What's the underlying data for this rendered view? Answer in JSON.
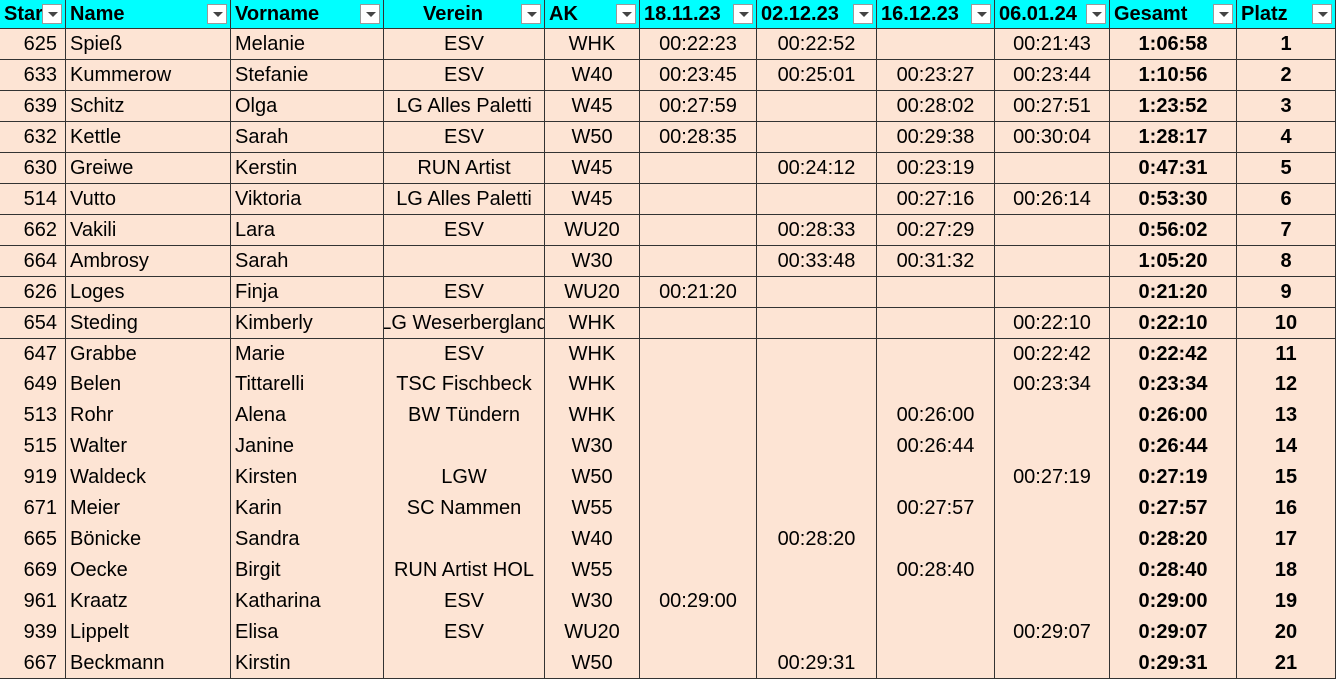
{
  "header": {
    "columns": [
      "Start",
      "Name",
      "Vorname",
      "Verein",
      "AK",
      "18.11.23",
      "02.12.23",
      "16.12.23",
      "06.01.24",
      "Gesamt",
      "Platz"
    ]
  },
  "table": {
    "rows": [
      [
        625,
        "Spieß",
        "Melanie",
        "ESV",
        "WHK",
        "00:22:23",
        "00:22:52",
        null,
        "00:21:43",
        "1:06:58",
        1
      ],
      [
        633,
        "Kummerow",
        "Stefanie",
        "ESV",
        "W40",
        "00:23:45",
        "00:25:01",
        "00:23:27",
        "00:23:44",
        "1:10:56",
        2
      ],
      [
        639,
        "Schitz",
        "Olga",
        "LG Alles Paletti",
        "W45",
        "00:27:59",
        null,
        "00:28:02",
        "00:27:51",
        "1:23:52",
        3
      ],
      [
        632,
        "Kettle",
        "Sarah",
        "ESV",
        "W50",
        "00:28:35",
        null,
        "00:29:38",
        "00:30:04",
        "1:28:17",
        4
      ],
      [
        630,
        "Greiwe",
        "Kerstin",
        "RUN Artist",
        "W45",
        null,
        "00:24:12",
        "00:23:19",
        null,
        "0:47:31",
        5
      ],
      [
        514,
        "Vutto",
        "Viktoria",
        "LG Alles Paletti",
        "W45",
        null,
        null,
        "00:27:16",
        "00:26:14",
        "0:53:30",
        6
      ],
      [
        662,
        "Vakili",
        "Lara",
        "ESV",
        "WU20",
        null,
        "00:28:33",
        "00:27:29",
        null,
        "0:56:02",
        7
      ],
      [
        664,
        "Ambrosy",
        "Sarah",
        null,
        "W30",
        null,
        "00:33:48",
        "00:31:32",
        null,
        "1:05:20",
        8
      ],
      [
        626,
        "Loges",
        "Finja",
        "ESV",
        "WU20",
        "00:21:20",
        null,
        null,
        null,
        "0:21:20",
        9
      ],
      [
        654,
        "Steding",
        "Kimberly",
        "LG Weserbergland",
        "WHK",
        null,
        null,
        null,
        "00:22:10",
        "0:22:10",
        10
      ],
      [
        647,
        "Grabbe",
        "Marie",
        "ESV",
        "WHK",
        null,
        null,
        null,
        "00:22:42",
        "0:22:42",
        11
      ],
      [
        649,
        "Belen",
        "Tittarelli",
        "TSC Fischbeck",
        "WHK",
        null,
        null,
        null,
        "00:23:34",
        "0:23:34",
        12
      ],
      [
        513,
        "Rohr",
        "Alena",
        "BW Tündern",
        "WHK",
        null,
        null,
        "00:26:00",
        null,
        "0:26:00",
        13
      ],
      [
        515,
        "Walter",
        "Janine",
        null,
        "W30",
        null,
        null,
        "00:26:44",
        null,
        "0:26:44",
        14
      ],
      [
        919,
        "Waldeck",
        "Kirsten",
        "LGW",
        "W50",
        null,
        null,
        null,
        "00:27:19",
        "0:27:19",
        15
      ],
      [
        671,
        "Meier",
        "Karin",
        "SC Nammen",
        "W55",
        null,
        null,
        "00:27:57",
        null,
        "0:27:57",
        16
      ],
      [
        665,
        "Bönicke",
        "Sandra",
        null,
        "W40",
        null,
        "00:28:20",
        null,
        null,
        "0:28:20",
        17
      ],
      [
        669,
        "Oecke",
        "Birgit",
        "RUN Artist HOL",
        "W55",
        null,
        null,
        "00:28:40",
        null,
        "0:28:40",
        18
      ],
      [
        961,
        "Kraatz",
        "Katharina",
        "ESV",
        "W30",
        "00:29:00",
        null,
        null,
        null,
        "0:29:00",
        19
      ],
      [
        939,
        "Lippelt",
        "Elisa",
        "ESV",
        "WU20",
        null,
        null,
        null,
        "00:29:07",
        "0:29:07",
        20
      ],
      [
        667,
        "Beckmann",
        "Kirstin",
        null,
        "W50",
        null,
        "00:29:31",
        null,
        null,
        "0:29:31",
        21
      ]
    ]
  }
}
